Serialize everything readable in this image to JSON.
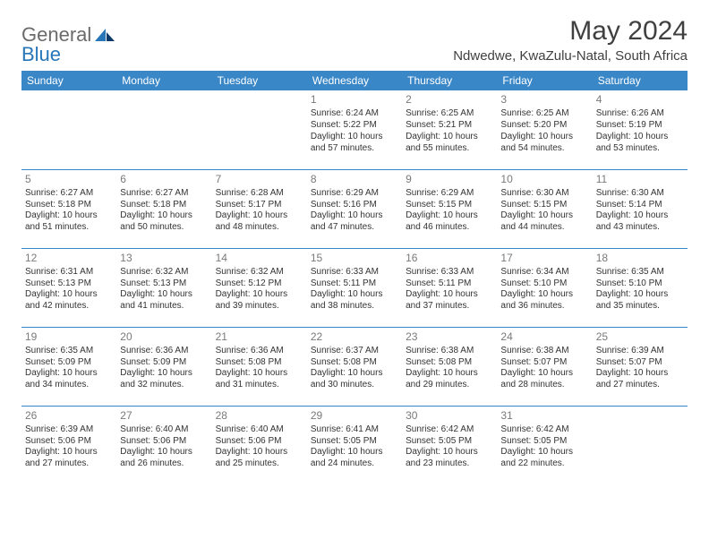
{
  "brand": {
    "part1": "General",
    "part2": "Blue"
  },
  "title": {
    "month": "May 2024",
    "location": "Ndwedwe, KwaZulu-Natal, South Africa"
  },
  "colors": {
    "header_bg": "#3a87c7",
    "header_fg": "#ffffff",
    "rule": "#3a87c7",
    "text": "#333333",
    "daynum": "#7a7a7a",
    "brand_gray": "#6b6b6b",
    "brand_blue": "#2676b8",
    "background": "#ffffff"
  },
  "weekdays": [
    "Sunday",
    "Monday",
    "Tuesday",
    "Wednesday",
    "Thursday",
    "Friday",
    "Saturday"
  ],
  "weeks": [
    [
      null,
      null,
      null,
      {
        "n": "1",
        "sr": "6:24 AM",
        "ss": "5:22 PM",
        "dl": "10 hours and 57 minutes."
      },
      {
        "n": "2",
        "sr": "6:25 AM",
        "ss": "5:21 PM",
        "dl": "10 hours and 55 minutes."
      },
      {
        "n": "3",
        "sr": "6:25 AM",
        "ss": "5:20 PM",
        "dl": "10 hours and 54 minutes."
      },
      {
        "n": "4",
        "sr": "6:26 AM",
        "ss": "5:19 PM",
        "dl": "10 hours and 53 minutes."
      }
    ],
    [
      {
        "n": "5",
        "sr": "6:27 AM",
        "ss": "5:18 PM",
        "dl": "10 hours and 51 minutes."
      },
      {
        "n": "6",
        "sr": "6:27 AM",
        "ss": "5:18 PM",
        "dl": "10 hours and 50 minutes."
      },
      {
        "n": "7",
        "sr": "6:28 AM",
        "ss": "5:17 PM",
        "dl": "10 hours and 48 minutes."
      },
      {
        "n": "8",
        "sr": "6:29 AM",
        "ss": "5:16 PM",
        "dl": "10 hours and 47 minutes."
      },
      {
        "n": "9",
        "sr": "6:29 AM",
        "ss": "5:15 PM",
        "dl": "10 hours and 46 minutes."
      },
      {
        "n": "10",
        "sr": "6:30 AM",
        "ss": "5:15 PM",
        "dl": "10 hours and 44 minutes."
      },
      {
        "n": "11",
        "sr": "6:30 AM",
        "ss": "5:14 PM",
        "dl": "10 hours and 43 minutes."
      }
    ],
    [
      {
        "n": "12",
        "sr": "6:31 AM",
        "ss": "5:13 PM",
        "dl": "10 hours and 42 minutes."
      },
      {
        "n": "13",
        "sr": "6:32 AM",
        "ss": "5:13 PM",
        "dl": "10 hours and 41 minutes."
      },
      {
        "n": "14",
        "sr": "6:32 AM",
        "ss": "5:12 PM",
        "dl": "10 hours and 39 minutes."
      },
      {
        "n": "15",
        "sr": "6:33 AM",
        "ss": "5:11 PM",
        "dl": "10 hours and 38 minutes."
      },
      {
        "n": "16",
        "sr": "6:33 AM",
        "ss": "5:11 PM",
        "dl": "10 hours and 37 minutes."
      },
      {
        "n": "17",
        "sr": "6:34 AM",
        "ss": "5:10 PM",
        "dl": "10 hours and 36 minutes."
      },
      {
        "n": "18",
        "sr": "6:35 AM",
        "ss": "5:10 PM",
        "dl": "10 hours and 35 minutes."
      }
    ],
    [
      {
        "n": "19",
        "sr": "6:35 AM",
        "ss": "5:09 PM",
        "dl": "10 hours and 34 minutes."
      },
      {
        "n": "20",
        "sr": "6:36 AM",
        "ss": "5:09 PM",
        "dl": "10 hours and 32 minutes."
      },
      {
        "n": "21",
        "sr": "6:36 AM",
        "ss": "5:08 PM",
        "dl": "10 hours and 31 minutes."
      },
      {
        "n": "22",
        "sr": "6:37 AM",
        "ss": "5:08 PM",
        "dl": "10 hours and 30 minutes."
      },
      {
        "n": "23",
        "sr": "6:38 AM",
        "ss": "5:08 PM",
        "dl": "10 hours and 29 minutes."
      },
      {
        "n": "24",
        "sr": "6:38 AM",
        "ss": "5:07 PM",
        "dl": "10 hours and 28 minutes."
      },
      {
        "n": "25",
        "sr": "6:39 AM",
        "ss": "5:07 PM",
        "dl": "10 hours and 27 minutes."
      }
    ],
    [
      {
        "n": "26",
        "sr": "6:39 AM",
        "ss": "5:06 PM",
        "dl": "10 hours and 27 minutes."
      },
      {
        "n": "27",
        "sr": "6:40 AM",
        "ss": "5:06 PM",
        "dl": "10 hours and 26 minutes."
      },
      {
        "n": "28",
        "sr": "6:40 AM",
        "ss": "5:06 PM",
        "dl": "10 hours and 25 minutes."
      },
      {
        "n": "29",
        "sr": "6:41 AM",
        "ss": "5:05 PM",
        "dl": "10 hours and 24 minutes."
      },
      {
        "n": "30",
        "sr": "6:42 AM",
        "ss": "5:05 PM",
        "dl": "10 hours and 23 minutes."
      },
      {
        "n": "31",
        "sr": "6:42 AM",
        "ss": "5:05 PM",
        "dl": "10 hours and 22 minutes."
      },
      null
    ]
  ],
  "labels": {
    "sunrise": "Sunrise:",
    "sunset": "Sunset:",
    "daylight": "Daylight:"
  }
}
